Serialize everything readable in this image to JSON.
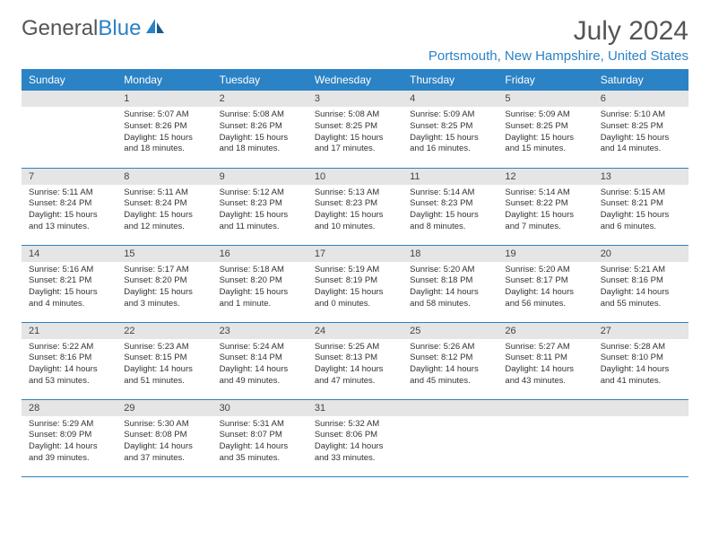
{
  "logo": {
    "text1": "General",
    "text2": "Blue"
  },
  "header": {
    "month_title": "July 2024",
    "location": "Portsmouth, New Hampshire, United States"
  },
  "colors": {
    "accent": "#2b82c5",
    "header_text": "#ffffff",
    "daynum_bg": "#e5e5e5",
    "text": "#333333",
    "muted": "#555555"
  },
  "weekdays": [
    "Sunday",
    "Monday",
    "Tuesday",
    "Wednesday",
    "Thursday",
    "Friday",
    "Saturday"
  ],
  "weeks": [
    [
      {
        "num": "",
        "lines": []
      },
      {
        "num": "1",
        "lines": [
          "Sunrise: 5:07 AM",
          "Sunset: 8:26 PM",
          "Daylight: 15 hours",
          "and 18 minutes."
        ]
      },
      {
        "num": "2",
        "lines": [
          "Sunrise: 5:08 AM",
          "Sunset: 8:26 PM",
          "Daylight: 15 hours",
          "and 18 minutes."
        ]
      },
      {
        "num": "3",
        "lines": [
          "Sunrise: 5:08 AM",
          "Sunset: 8:25 PM",
          "Daylight: 15 hours",
          "and 17 minutes."
        ]
      },
      {
        "num": "4",
        "lines": [
          "Sunrise: 5:09 AM",
          "Sunset: 8:25 PM",
          "Daylight: 15 hours",
          "and 16 minutes."
        ]
      },
      {
        "num": "5",
        "lines": [
          "Sunrise: 5:09 AM",
          "Sunset: 8:25 PM",
          "Daylight: 15 hours",
          "and 15 minutes."
        ]
      },
      {
        "num": "6",
        "lines": [
          "Sunrise: 5:10 AM",
          "Sunset: 8:25 PM",
          "Daylight: 15 hours",
          "and 14 minutes."
        ]
      }
    ],
    [
      {
        "num": "7",
        "lines": [
          "Sunrise: 5:11 AM",
          "Sunset: 8:24 PM",
          "Daylight: 15 hours",
          "and 13 minutes."
        ]
      },
      {
        "num": "8",
        "lines": [
          "Sunrise: 5:11 AM",
          "Sunset: 8:24 PM",
          "Daylight: 15 hours",
          "and 12 minutes."
        ]
      },
      {
        "num": "9",
        "lines": [
          "Sunrise: 5:12 AM",
          "Sunset: 8:23 PM",
          "Daylight: 15 hours",
          "and 11 minutes."
        ]
      },
      {
        "num": "10",
        "lines": [
          "Sunrise: 5:13 AM",
          "Sunset: 8:23 PM",
          "Daylight: 15 hours",
          "and 10 minutes."
        ]
      },
      {
        "num": "11",
        "lines": [
          "Sunrise: 5:14 AM",
          "Sunset: 8:23 PM",
          "Daylight: 15 hours",
          "and 8 minutes."
        ]
      },
      {
        "num": "12",
        "lines": [
          "Sunrise: 5:14 AM",
          "Sunset: 8:22 PM",
          "Daylight: 15 hours",
          "and 7 minutes."
        ]
      },
      {
        "num": "13",
        "lines": [
          "Sunrise: 5:15 AM",
          "Sunset: 8:21 PM",
          "Daylight: 15 hours",
          "and 6 minutes."
        ]
      }
    ],
    [
      {
        "num": "14",
        "lines": [
          "Sunrise: 5:16 AM",
          "Sunset: 8:21 PM",
          "Daylight: 15 hours",
          "and 4 minutes."
        ]
      },
      {
        "num": "15",
        "lines": [
          "Sunrise: 5:17 AM",
          "Sunset: 8:20 PM",
          "Daylight: 15 hours",
          "and 3 minutes."
        ]
      },
      {
        "num": "16",
        "lines": [
          "Sunrise: 5:18 AM",
          "Sunset: 8:20 PM",
          "Daylight: 15 hours",
          "and 1 minute."
        ]
      },
      {
        "num": "17",
        "lines": [
          "Sunrise: 5:19 AM",
          "Sunset: 8:19 PM",
          "Daylight: 15 hours",
          "and 0 minutes."
        ]
      },
      {
        "num": "18",
        "lines": [
          "Sunrise: 5:20 AM",
          "Sunset: 8:18 PM",
          "Daylight: 14 hours",
          "and 58 minutes."
        ]
      },
      {
        "num": "19",
        "lines": [
          "Sunrise: 5:20 AM",
          "Sunset: 8:17 PM",
          "Daylight: 14 hours",
          "and 56 minutes."
        ]
      },
      {
        "num": "20",
        "lines": [
          "Sunrise: 5:21 AM",
          "Sunset: 8:16 PM",
          "Daylight: 14 hours",
          "and 55 minutes."
        ]
      }
    ],
    [
      {
        "num": "21",
        "lines": [
          "Sunrise: 5:22 AM",
          "Sunset: 8:16 PM",
          "Daylight: 14 hours",
          "and 53 minutes."
        ]
      },
      {
        "num": "22",
        "lines": [
          "Sunrise: 5:23 AM",
          "Sunset: 8:15 PM",
          "Daylight: 14 hours",
          "and 51 minutes."
        ]
      },
      {
        "num": "23",
        "lines": [
          "Sunrise: 5:24 AM",
          "Sunset: 8:14 PM",
          "Daylight: 14 hours",
          "and 49 minutes."
        ]
      },
      {
        "num": "24",
        "lines": [
          "Sunrise: 5:25 AM",
          "Sunset: 8:13 PM",
          "Daylight: 14 hours",
          "and 47 minutes."
        ]
      },
      {
        "num": "25",
        "lines": [
          "Sunrise: 5:26 AM",
          "Sunset: 8:12 PM",
          "Daylight: 14 hours",
          "and 45 minutes."
        ]
      },
      {
        "num": "26",
        "lines": [
          "Sunrise: 5:27 AM",
          "Sunset: 8:11 PM",
          "Daylight: 14 hours",
          "and 43 minutes."
        ]
      },
      {
        "num": "27",
        "lines": [
          "Sunrise: 5:28 AM",
          "Sunset: 8:10 PM",
          "Daylight: 14 hours",
          "and 41 minutes."
        ]
      }
    ],
    [
      {
        "num": "28",
        "lines": [
          "Sunrise: 5:29 AM",
          "Sunset: 8:09 PM",
          "Daylight: 14 hours",
          "and 39 minutes."
        ]
      },
      {
        "num": "29",
        "lines": [
          "Sunrise: 5:30 AM",
          "Sunset: 8:08 PM",
          "Daylight: 14 hours",
          "and 37 minutes."
        ]
      },
      {
        "num": "30",
        "lines": [
          "Sunrise: 5:31 AM",
          "Sunset: 8:07 PM",
          "Daylight: 14 hours",
          "and 35 minutes."
        ]
      },
      {
        "num": "31",
        "lines": [
          "Sunrise: 5:32 AM",
          "Sunset: 8:06 PM",
          "Daylight: 14 hours",
          "and 33 minutes."
        ]
      },
      {
        "num": "",
        "lines": []
      },
      {
        "num": "",
        "lines": []
      },
      {
        "num": "",
        "lines": []
      }
    ]
  ]
}
